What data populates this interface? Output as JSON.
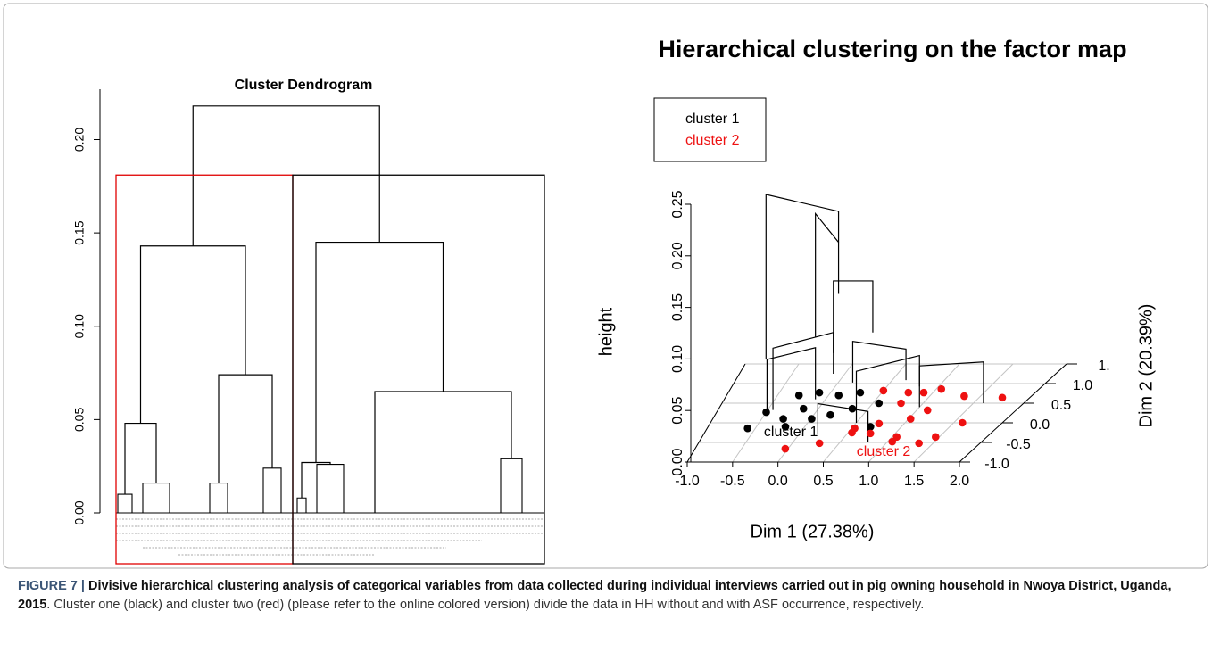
{
  "chart_data": [
    {
      "type": "dendrogram",
      "title": "Cluster Dendrogram",
      "ylim": [
        0,
        0.227
      ],
      "yticks": [
        {
          "value": 0,
          "label": "0.00"
        },
        {
          "value": 0.05,
          "label": "0.05"
        },
        {
          "value": 0.1,
          "label": "0.10"
        },
        {
          "value": 0.15,
          "label": "0.15"
        },
        {
          "value": 0.2,
          "label": "0.20"
        }
      ],
      "nodes": [
        {
          "height": 0.218,
          "children": [
            1,
            2
          ]
        },
        {
          "height": 0.143,
          "children": [
            3,
            4
          ]
        },
        {
          "height": 0.145,
          "children": [
            5,
            6
          ]
        },
        {
          "height": 0.048,
          "children": [
            7,
            8
          ]
        },
        {
          "height": 0.074,
          "children": [
            9,
            10
          ]
        },
        {
          "height": 0.027,
          "children": [
            11,
            12
          ]
        },
        {
          "height": 0.065,
          "children": [
            13,
            14
          ]
        },
        {
          "height": 0.01
        },
        {
          "height": 0.016
        },
        {
          "height": 0.016
        },
        {
          "height": 0.024
        },
        {
          "height": 0.008
        },
        {
          "height": 0.026
        },
        {
          "height": 0
        },
        {
          "height": 0.029
        }
      ],
      "cut_height": 0.181,
      "cluster_colors": [
        "#e00000",
        "#000000"
      ]
    },
    {
      "type": "scatter3d",
      "title": "Hierarchical clustering on the factor map",
      "xlabel": "Dim 1 (27.38%)",
      "ylabel": "Dim 2 (20.39%)",
      "zlabel": "height",
      "xlim": [
        -1,
        2
      ],
      "ylim": [
        -1,
        1.5
      ],
      "zlim": [
        0,
        0.25
      ],
      "xticks": [
        {
          "value": -1,
          "label": "-1.0"
        },
        {
          "value": -0.5,
          "label": "-0.5"
        },
        {
          "value": 0,
          "label": "0.0"
        },
        {
          "value": 0.5,
          "label": "0.5"
        },
        {
          "value": 1,
          "label": "1.0"
        },
        {
          "value": 1.5,
          "label": "1.5"
        },
        {
          "value": 2,
          "label": "2.0"
        }
      ],
      "yticks": [
        {
          "value": -1,
          "label": "-1.0"
        },
        {
          "value": -0.5,
          "label": "-0.5"
        },
        {
          "value": 0,
          "label": "0.0"
        },
        {
          "value": 0.5,
          "label": "0.5"
        },
        {
          "value": 1,
          "label": "1.0"
        },
        {
          "value": 1.5,
          "label": "1."
        }
      ],
      "zticks": [
        {
          "value": 0,
          "label": "0.00"
        },
        {
          "value": 0.05,
          "label": "0.05"
        },
        {
          "value": 0.1,
          "label": "0.10"
        },
        {
          "value": 0.15,
          "label": "0.15"
        },
        {
          "value": 0.2,
          "label": "0.20"
        },
        {
          "value": 0.25,
          "label": "0.25"
        }
      ],
      "grid": true,
      "legend": "top-left",
      "series": [
        {
          "name": "cluster 1",
          "color": "#000000",
          "x": [
            -0.58,
            -0.5,
            -0.28,
            -0.2,
            -0.29,
            -0.11,
            0.1,
            0.29,
            0.56,
            0.01,
            0.17,
            0.34,
            0.68,
            -0.15
          ],
          "y": [
            -0.14,
            0.27,
            0.1,
            -0.1,
            0.7,
            0.77,
            0.7,
            0.77,
            0.5,
            0.1,
            0.2,
            0.36,
            -0.1,
            0.36
          ]
        },
        {
          "name": "cluster 2",
          "color": "#ee1111",
          "x": [
            1.73,
            1.34,
            1.05,
            1.11,
            1.59,
            0.78,
            1.02,
            1.05,
            0.74,
            1.05,
            1.35,
            1.46,
            0.74,
            0.54,
            0.29,
            -0.03,
            0.5,
            0.76,
            0.91,
            0.53
          ],
          "y": [
            0.64,
            0.68,
            0.86,
            0.32,
            0,
            0.5,
            0.1,
            -0.36,
            -0.27,
            -0.48,
            -0.52,
            -0.36,
            -0.02,
            -0.25,
            -0.52,
            -0.66,
            0.82,
            0.77,
            0.77,
            -0.14
          ]
        }
      ],
      "merges": [
        {
          "height": 0.21,
          "legs": [
            [
              -0.51,
              0.3,
              0.05
            ],
            [
              0.36,
              -0.13,
              0.18
            ]
          ]
        },
        {
          "height": 0.18,
          "legs": [
            [
              0.36,
              -0.13,
              0.13
            ],
            [
              -0.1,
              0.6,
              0.06
            ]
          ]
        },
        {
          "height": 0.13,
          "legs": [
            [
              0.2,
              0.2,
              0.06
            ],
            [
              0.6,
              0.2,
              0.08
            ]
          ]
        },
        {
          "height": 0.08,
          "legs": [
            [
              -0.3,
              -0.2,
              0.02
            ],
            [
              0.2,
              0.2,
              0.04
            ]
          ]
        },
        {
          "height": 0.06,
          "legs": [
            [
              0.3,
              0.5,
              0.02
            ],
            [
              0.9,
              0.3,
              0.03
            ]
          ]
        },
        {
          "height": 0.05,
          "legs": [
            [
              0.5,
              0,
              0
            ],
            [
              1,
              0.4,
              0.02
            ]
          ]
        },
        {
          "height": 0.05,
          "legs": [
            [
              -0.5,
              0.3,
              0
            ],
            [
              -0.1,
              0.6,
              0
            ]
          ]
        },
        {
          "height": 0.04,
          "legs": [
            [
              1,
              0.4,
              0
            ],
            [
              1.6,
              0.5,
              0
            ]
          ]
        },
        {
          "height": 0.03,
          "legs": [
            [
              0.2,
              -0.3,
              0
            ],
            [
              0.8,
              -0.5,
              0
            ]
          ]
        }
      ]
    }
  ],
  "caption": {
    "label": "FIGURE 7 |",
    "title": "Divisive hierarchical clustering analysis of categorical variables from data collected during individual interviews carried out in pig owning household in Nwoya District, Uganda, 2015",
    "text": ". Cluster one (black) and cluster two (red) (please refer to the online colored version) divide the data in HH without and with ASF occurrence, respectively."
  }
}
